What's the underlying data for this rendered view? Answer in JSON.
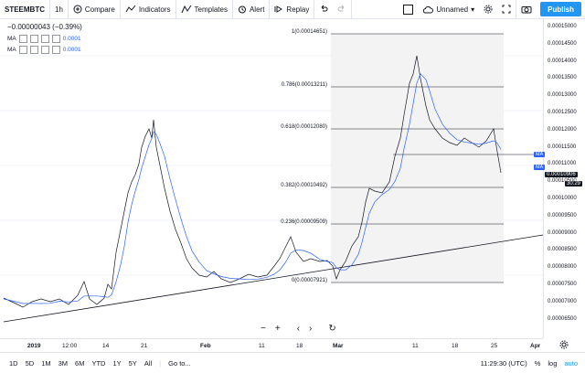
{
  "toolbar": {
    "symbol": "STEEMBTC",
    "interval": "1h",
    "compare": "Compare",
    "indicators": "Indicators",
    "templates": "Templates",
    "alert": "Alert",
    "replay": "Replay",
    "layout": "Unnamed",
    "publish": "Publish"
  },
  "legend": {
    "change": "−0.00000043 (−0.39%)",
    "ma1_label": "MA",
    "ma1_value": "0.0001",
    "ma2_label": "MA",
    "ma2_value": "0.0001"
  },
  "fib_levels": [
    {
      "label": "1(0.00014651)"
    },
    {
      "label": "0.786(0.00013211)"
    },
    {
      "label": "0.618(0.00012080)"
    },
    {
      "label": "0.382(0.00010492)"
    },
    {
      "label": "0.236(0.00009509)"
    },
    {
      "label": "0(0.00007921)"
    }
  ],
  "yaxis": [
    "0.00015000",
    "0.00014500",
    "0.00014000",
    "0.00013500",
    "0.00013000",
    "0.00012500",
    "0.00012000",
    "0.00011500",
    "0.00011000",
    "0.00010500",
    "0.00010000",
    "0.00009500",
    "0.00009000",
    "0.00008500",
    "0.00008000",
    "0.00007500",
    "0.00007000",
    "0.00006500"
  ],
  "price_badges": {
    "ma_a": "MA",
    "ma_b": "MA",
    "last": "0.00010906",
    "countdown": "30:29"
  },
  "xaxis": [
    "2019",
    "12:00",
    "14",
    "21",
    "Feb",
    "11",
    "18",
    "Mar",
    "11",
    "18",
    "25",
    "Apr"
  ],
  "nav_controls": {
    "zoom_out": "−",
    "zoom_in": "+",
    "back": "‹",
    "forward": "›",
    "reset": "↻"
  },
  "bottombar": {
    "ranges": [
      "1D",
      "5D",
      "1M",
      "3M",
      "6M",
      "YTD",
      "1Y",
      "5Y",
      "All"
    ],
    "goto": "Go to...",
    "time": "11:29:30 (UTC)",
    "percent": "%",
    "log": "log",
    "auto": "auto"
  },
  "colors": {
    "accent": "#2196f3",
    "price_line": "#131722",
    "ma_line": "#2962ff",
    "fib_bg": "#f0f0f0"
  }
}
